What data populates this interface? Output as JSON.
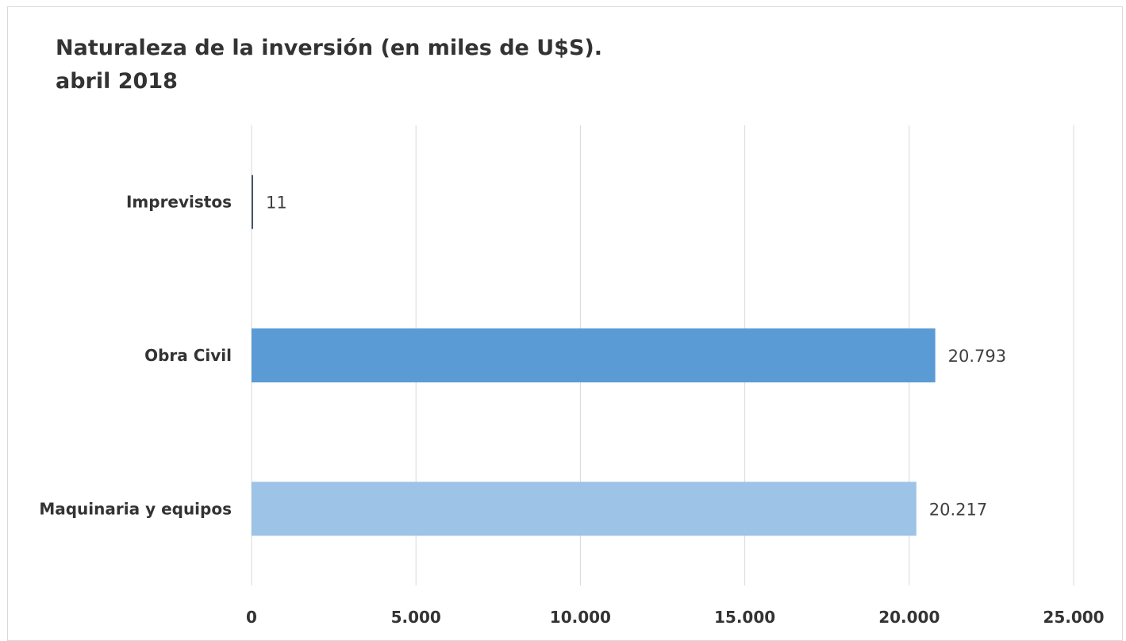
{
  "chart_data": {
    "type": "bar",
    "orientation": "horizontal",
    "title_lines": [
      "Naturaleza de la inversión (en miles de U$S).",
      "abril 2018"
    ],
    "categories": [
      "Imprevistos",
      "Obra Civil",
      "Maquinaria y equipos"
    ],
    "values": [
      11,
      20793,
      20217
    ],
    "value_labels": [
      "11",
      "20.793",
      "20.217"
    ],
    "bar_colors": [
      "#44546a",
      "#5b9bd5",
      "#9dc3e6"
    ],
    "xlim": [
      0,
      25000
    ],
    "ticks": [
      0,
      5000,
      10000,
      15000,
      20000,
      25000
    ],
    "tick_labels": [
      "0",
      "5.000",
      "10.000",
      "15.000",
      "20.000",
      "25.000"
    ],
    "grid": "vertical",
    "legend": "none",
    "xlabel": "",
    "ylabel": ""
  }
}
